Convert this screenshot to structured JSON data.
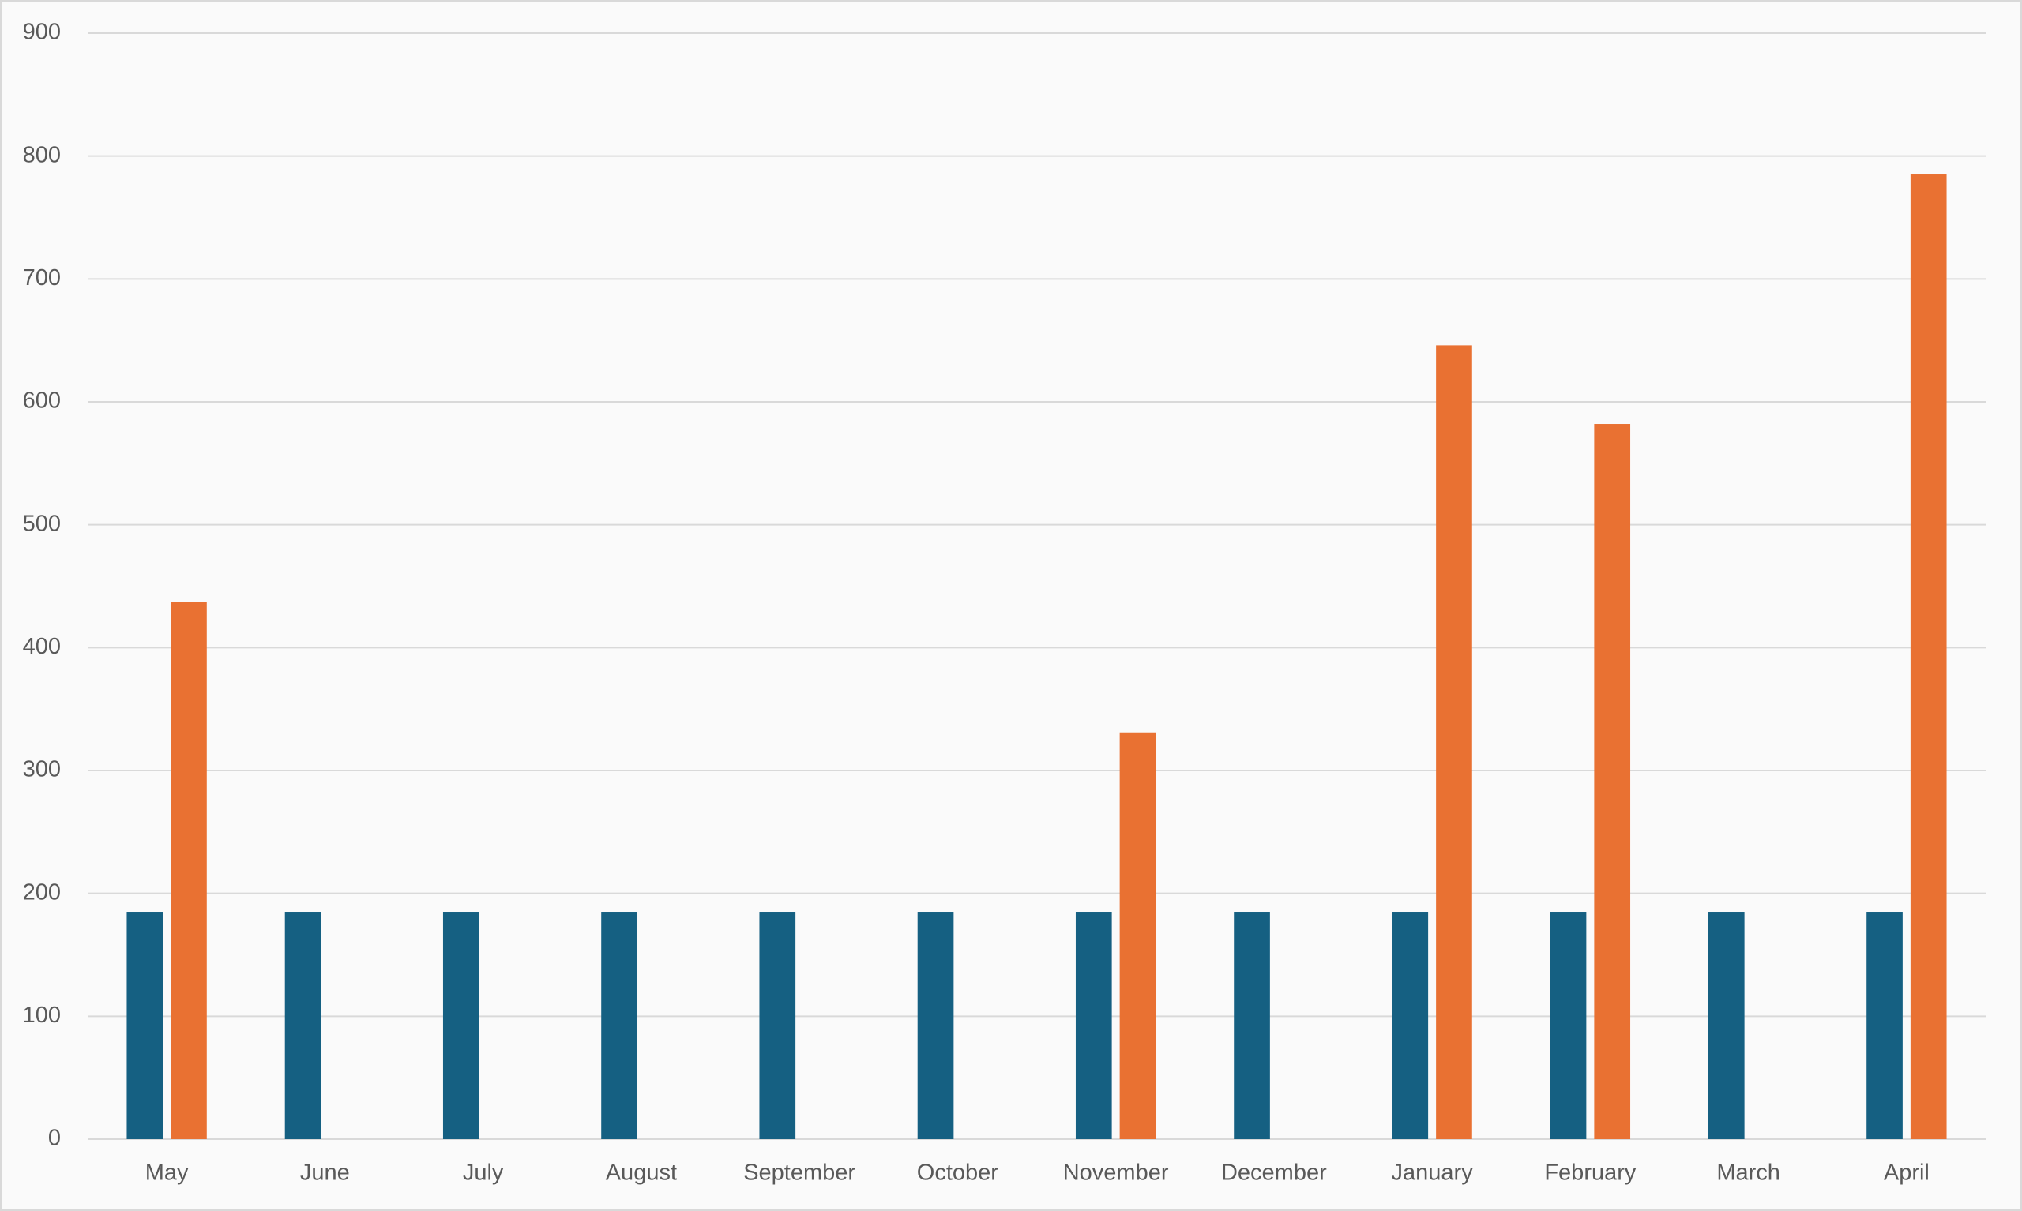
{
  "chart_data": {
    "type": "bar",
    "categories": [
      "May",
      "June",
      "July",
      "August",
      "September",
      "October",
      "November",
      "December",
      "January",
      "February",
      "March",
      "April"
    ],
    "series": [
      {
        "color": "#156082",
        "values": [
          185,
          185,
          185,
          185,
          185,
          185,
          185,
          185,
          185,
          185,
          185,
          185
        ]
      },
      {
        "color": "#e97132",
        "values": [
          437,
          null,
          null,
          null,
          null,
          null,
          331,
          null,
          646,
          582,
          null,
          785
        ]
      }
    ],
    "ylim": [
      0,
      900
    ],
    "yticks": [
      0,
      100,
      200,
      300,
      400,
      500,
      600,
      700,
      800,
      900
    ],
    "grid": true
  }
}
